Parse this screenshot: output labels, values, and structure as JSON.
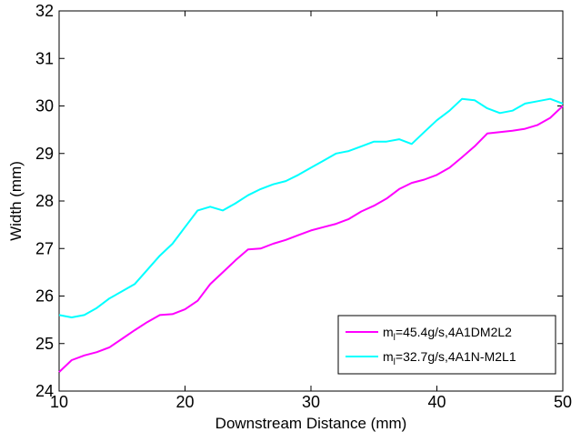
{
  "chart_data": {
    "type": "line",
    "title": "",
    "xlabel": "Downstream Distance (mm)",
    "ylabel": "Width (mm)",
    "xlim": [
      10,
      50
    ],
    "ylim": [
      24,
      32
    ],
    "xticks": [
      "10",
      "20",
      "30",
      "40",
      "50"
    ],
    "yticks": [
      "24",
      "25",
      "26",
      "27",
      "28",
      "29",
      "30",
      "31",
      "32"
    ],
    "grid": false,
    "legend_position": "bottom-right",
    "series": [
      {
        "name": "m",
        "name_sub": "l",
        "name_rest": "=45.4g/s,4A1DM2L2",
        "color": "#ff00ff",
        "x": [
          10,
          11,
          12,
          13,
          14,
          15,
          16,
          17,
          18,
          19,
          20,
          21,
          22,
          23,
          24,
          25,
          26,
          27,
          28,
          29,
          30,
          31,
          32,
          33,
          34,
          35,
          36,
          37,
          38,
          39,
          40,
          41,
          42,
          43,
          44,
          45,
          46,
          47,
          48,
          49,
          50
        ],
        "y": [
          24.4,
          24.65,
          24.75,
          24.82,
          24.92,
          25.1,
          25.28,
          25.45,
          25.6,
          25.62,
          25.72,
          25.9,
          26.25,
          26.5,
          26.75,
          26.98,
          27.0,
          27.1,
          27.18,
          27.28,
          27.38,
          27.45,
          27.52,
          27.62,
          27.78,
          27.9,
          28.05,
          28.25,
          28.38,
          28.45,
          28.55,
          28.7,
          28.92,
          29.15,
          29.42,
          29.45,
          29.48,
          29.52,
          29.6,
          29.75,
          30.0
        ]
      },
      {
        "name": "m",
        "name_sub": "l",
        "name_rest": "=32.7g/s,4A1N-M2L1",
        "color": "#00ffff",
        "x": [
          10,
          11,
          12,
          13,
          14,
          15,
          16,
          17,
          18,
          19,
          20,
          21,
          22,
          23,
          24,
          25,
          26,
          27,
          28,
          29,
          30,
          31,
          32,
          33,
          34,
          35,
          36,
          37,
          38,
          39,
          40,
          41,
          42,
          43,
          44,
          45,
          46,
          47,
          48,
          49,
          50
        ],
        "y": [
          25.6,
          25.55,
          25.6,
          25.75,
          25.95,
          26.1,
          26.25,
          26.55,
          26.85,
          27.1,
          27.45,
          27.8,
          27.88,
          27.8,
          27.95,
          28.12,
          28.25,
          28.35,
          28.42,
          28.55,
          28.7,
          28.85,
          29.0,
          29.05,
          29.15,
          29.25,
          29.25,
          29.3,
          29.2,
          29.45,
          29.7,
          29.9,
          30.15,
          30.12,
          29.95,
          29.85,
          29.9,
          30.05,
          30.1,
          30.15,
          30.05
        ]
      }
    ]
  }
}
